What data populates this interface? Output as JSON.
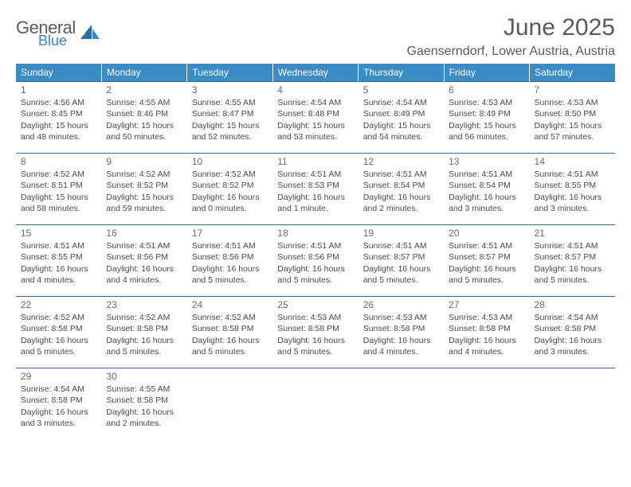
{
  "brand": {
    "line1": "General",
    "line2": "Blue"
  },
  "title": {
    "month": "June 2025",
    "location": "Gaenserndorf, Lower Austria, Austria"
  },
  "colors": {
    "header_bg": "#3b8bc4",
    "header_text": "#ffffff",
    "rule": "#2f6aa0",
    "body_text": "#4a4a4a",
    "title_text": "#5a5a5a",
    "logo_blue": "#3b82c4"
  },
  "weekdays": [
    "Sunday",
    "Monday",
    "Tuesday",
    "Wednesday",
    "Thursday",
    "Friday",
    "Saturday"
  ],
  "weeks": [
    [
      {
        "n": "1",
        "sr": "Sunrise: 4:56 AM",
        "ss": "Sunset: 8:45 PM",
        "d1": "Daylight: 15 hours",
        "d2": "and 48 minutes."
      },
      {
        "n": "2",
        "sr": "Sunrise: 4:55 AM",
        "ss": "Sunset: 8:46 PM",
        "d1": "Daylight: 15 hours",
        "d2": "and 50 minutes."
      },
      {
        "n": "3",
        "sr": "Sunrise: 4:55 AM",
        "ss": "Sunset: 8:47 PM",
        "d1": "Daylight: 15 hours",
        "d2": "and 52 minutes."
      },
      {
        "n": "4",
        "sr": "Sunrise: 4:54 AM",
        "ss": "Sunset: 8:48 PM",
        "d1": "Daylight: 15 hours",
        "d2": "and 53 minutes."
      },
      {
        "n": "5",
        "sr": "Sunrise: 4:54 AM",
        "ss": "Sunset: 8:49 PM",
        "d1": "Daylight: 15 hours",
        "d2": "and 54 minutes."
      },
      {
        "n": "6",
        "sr": "Sunrise: 4:53 AM",
        "ss": "Sunset: 8:49 PM",
        "d1": "Daylight: 15 hours",
        "d2": "and 56 minutes."
      },
      {
        "n": "7",
        "sr": "Sunrise: 4:53 AM",
        "ss": "Sunset: 8:50 PM",
        "d1": "Daylight: 15 hours",
        "d2": "and 57 minutes."
      }
    ],
    [
      {
        "n": "8",
        "sr": "Sunrise: 4:52 AM",
        "ss": "Sunset: 8:51 PM",
        "d1": "Daylight: 15 hours",
        "d2": "and 58 minutes."
      },
      {
        "n": "9",
        "sr": "Sunrise: 4:52 AM",
        "ss": "Sunset: 8:52 PM",
        "d1": "Daylight: 15 hours",
        "d2": "and 59 minutes."
      },
      {
        "n": "10",
        "sr": "Sunrise: 4:52 AM",
        "ss": "Sunset: 8:52 PM",
        "d1": "Daylight: 16 hours",
        "d2": "and 0 minutes."
      },
      {
        "n": "11",
        "sr": "Sunrise: 4:51 AM",
        "ss": "Sunset: 8:53 PM",
        "d1": "Daylight: 16 hours",
        "d2": "and 1 minute."
      },
      {
        "n": "12",
        "sr": "Sunrise: 4:51 AM",
        "ss": "Sunset: 8:54 PM",
        "d1": "Daylight: 16 hours",
        "d2": "and 2 minutes."
      },
      {
        "n": "13",
        "sr": "Sunrise: 4:51 AM",
        "ss": "Sunset: 8:54 PM",
        "d1": "Daylight: 16 hours",
        "d2": "and 3 minutes."
      },
      {
        "n": "14",
        "sr": "Sunrise: 4:51 AM",
        "ss": "Sunset: 8:55 PM",
        "d1": "Daylight: 16 hours",
        "d2": "and 3 minutes."
      }
    ],
    [
      {
        "n": "15",
        "sr": "Sunrise: 4:51 AM",
        "ss": "Sunset: 8:55 PM",
        "d1": "Daylight: 16 hours",
        "d2": "and 4 minutes."
      },
      {
        "n": "16",
        "sr": "Sunrise: 4:51 AM",
        "ss": "Sunset: 8:56 PM",
        "d1": "Daylight: 16 hours",
        "d2": "and 4 minutes."
      },
      {
        "n": "17",
        "sr": "Sunrise: 4:51 AM",
        "ss": "Sunset: 8:56 PM",
        "d1": "Daylight: 16 hours",
        "d2": "and 5 minutes."
      },
      {
        "n": "18",
        "sr": "Sunrise: 4:51 AM",
        "ss": "Sunset: 8:56 PM",
        "d1": "Daylight: 16 hours",
        "d2": "and 5 minutes."
      },
      {
        "n": "19",
        "sr": "Sunrise: 4:51 AM",
        "ss": "Sunset: 8:57 PM",
        "d1": "Daylight: 16 hours",
        "d2": "and 5 minutes."
      },
      {
        "n": "20",
        "sr": "Sunrise: 4:51 AM",
        "ss": "Sunset: 8:57 PM",
        "d1": "Daylight: 16 hours",
        "d2": "and 5 minutes."
      },
      {
        "n": "21",
        "sr": "Sunrise: 4:51 AM",
        "ss": "Sunset: 8:57 PM",
        "d1": "Daylight: 16 hours",
        "d2": "and 5 minutes."
      }
    ],
    [
      {
        "n": "22",
        "sr": "Sunrise: 4:52 AM",
        "ss": "Sunset: 8:58 PM",
        "d1": "Daylight: 16 hours",
        "d2": "and 5 minutes."
      },
      {
        "n": "23",
        "sr": "Sunrise: 4:52 AM",
        "ss": "Sunset: 8:58 PM",
        "d1": "Daylight: 16 hours",
        "d2": "and 5 minutes."
      },
      {
        "n": "24",
        "sr": "Sunrise: 4:52 AM",
        "ss": "Sunset: 8:58 PM",
        "d1": "Daylight: 16 hours",
        "d2": "and 5 minutes."
      },
      {
        "n": "25",
        "sr": "Sunrise: 4:53 AM",
        "ss": "Sunset: 8:58 PM",
        "d1": "Daylight: 16 hours",
        "d2": "and 5 minutes."
      },
      {
        "n": "26",
        "sr": "Sunrise: 4:53 AM",
        "ss": "Sunset: 8:58 PM",
        "d1": "Daylight: 16 hours",
        "d2": "and 4 minutes."
      },
      {
        "n": "27",
        "sr": "Sunrise: 4:53 AM",
        "ss": "Sunset: 8:58 PM",
        "d1": "Daylight: 16 hours",
        "d2": "and 4 minutes."
      },
      {
        "n": "28",
        "sr": "Sunrise: 4:54 AM",
        "ss": "Sunset: 8:58 PM",
        "d1": "Daylight: 16 hours",
        "d2": "and 3 minutes."
      }
    ],
    [
      {
        "n": "29",
        "sr": "Sunrise: 4:54 AM",
        "ss": "Sunset: 8:58 PM",
        "d1": "Daylight: 16 hours",
        "d2": "and 3 minutes."
      },
      {
        "n": "30",
        "sr": "Sunrise: 4:55 AM",
        "ss": "Sunset: 8:58 PM",
        "d1": "Daylight: 16 hours",
        "d2": "and 2 minutes."
      },
      null,
      null,
      null,
      null,
      null
    ]
  ]
}
